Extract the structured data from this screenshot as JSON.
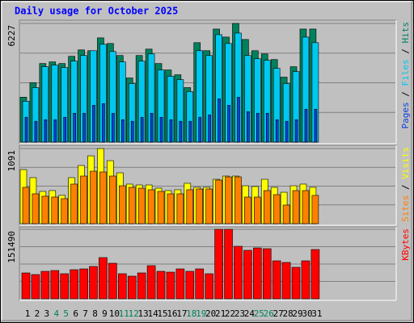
{
  "chart_data": {
    "type": "bar",
    "title": "Daily usage for October 2025",
    "categories": [
      "1",
      "2",
      "3",
      "4",
      "5",
      "6",
      "7",
      "8",
      "9",
      "10",
      "11",
      "12",
      "13",
      "14",
      "15",
      "16",
      "17",
      "18",
      "19",
      "20",
      "21",
      "22",
      "23",
      "24",
      "25",
      "26",
      "27",
      "28",
      "29",
      "30",
      "31"
    ],
    "category_colors": [
      "#000000",
      "#000000",
      "#000000",
      "#00805c",
      "#00805c",
      "#000000",
      "#000000",
      "#000000",
      "#000000",
      "#000000",
      "#00805c",
      "#00805c",
      "#000000",
      "#000000",
      "#000000",
      "#000000",
      "#000000",
      "#00805c",
      "#00805c",
      "#000000",
      "#000000",
      "#000000",
      "#000000",
      "#000000",
      "#00805c",
      "#00805c",
      "#000000",
      "#000000",
      "#000000",
      "#000000",
      "#000000"
    ],
    "panels": [
      {
        "ylim": [
          0,
          6227
        ],
        "yticks": [
          6227
        ],
        "series": [
          {
            "name": "Hits",
            "color": "#00805c",
            "values": [
              2356,
              3113,
              4123,
              4207,
              4123,
              4501,
              4838,
              4796,
              5469,
              5175,
              4544,
              3366,
              4544,
              4880,
              4123,
              3786,
              3534,
              2861,
              5217,
              4796,
              5932,
              5511,
              6227,
              5385,
              4796,
              4628,
              4333,
              3408,
              3955,
              5932,
              5932
            ]
          },
          {
            "name": "Files",
            "color": "#00c8f0",
            "values": [
              2146,
              2861,
              3955,
              4039,
              3913,
              4249,
              4544,
              4796,
              5133,
              4754,
              4207,
              3071,
              4249,
              4628,
              3786,
              3450,
              3281,
              2650,
              4796,
              4544,
              5637,
              5175,
              5721,
              4544,
              4375,
              4291,
              3870,
              3071,
              3702,
              5511,
              5217
            ]
          },
          {
            "name": "Pages",
            "color": "#1040e0",
            "values": [
              1304,
              1094,
              1178,
              1178,
              1304,
              1515,
              1515,
              1935,
              2019,
              1515,
              1178,
              1094,
              1304,
              1515,
              1304,
              1178,
              1094,
              1094,
              1304,
              1430,
              2272,
              1935,
              2356,
              1599,
              1515,
              1515,
              1178,
              1094,
              1178,
              1725,
              1725
            ]
          }
        ]
      },
      {
        "ylim": [
          0,
          1091
        ],
        "yticks": [
          1091
        ],
        "series": [
          {
            "name": "Visits",
            "color": "#ffff00",
            "values": [
              786,
              669,
              469,
              481,
              411,
              669,
              845,
              985,
              1091,
              915,
              739,
              575,
              563,
              563,
              516,
              481,
              493,
              587,
              528,
              528,
              645,
              692,
              692,
              551,
              540,
              645,
              528,
              457,
              551,
              575,
              528
            ]
          },
          {
            "name": "Sites",
            "color": "#ff8000",
            "values": [
              528,
              434,
              399,
              387,
              364,
              575,
              692,
              762,
              751,
              692,
              551,
              528,
              516,
              493,
              469,
              434,
              434,
              493,
              504,
              504,
              633,
              680,
              680,
              387,
              387,
              481,
              422,
              270,
              481,
              481,
              411
            ]
          }
        ]
      },
      {
        "ylim": [
          0,
          151490
        ],
        "yticks": [
          151490
        ],
        "series": [
          {
            "name": "KBytes",
            "color": "#ff0000",
            "values": [
              56368,
              52845,
              59891,
              61653,
              54607,
              63414,
              65176,
              70460,
              89837,
              77506,
              54607,
              49322,
              56368,
              72222,
              59891,
              58130,
              65176,
              59891,
              65176,
              54607,
              151490,
              151490,
              114498,
              105690,
              110975,
              109213,
              82791,
              79268,
              68699,
              82791,
              107452
            ]
          }
        ]
      }
    ]
  }
}
